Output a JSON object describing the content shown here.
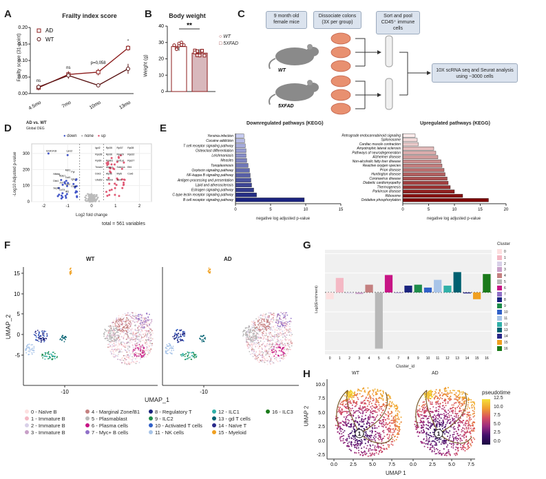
{
  "labels": {
    "A": "A",
    "B": "B",
    "C": "C",
    "D": "D",
    "E": "E",
    "F": "F",
    "G": "G",
    "H": "H"
  },
  "colors": {
    "ad": "#8b1a1a",
    "wt": "#5a1414",
    "down_bar": "#1a237e",
    "up_bar": "#7f0000",
    "down_pt": "#4457c8",
    "up_pt": "#e05a75",
    "none_pt": "#bbbbbb"
  },
  "panelA": {
    "title": "Frailty index score",
    "ylabel": "Frailty score (31-point)",
    "legend": [
      "AD",
      "WT"
    ],
    "annotations": [
      "ns",
      "ns",
      "p=0,058",
      "*"
    ],
    "chart_data": {
      "type": "line",
      "categories": [
        "4.5mo",
        "7mo",
        "10mo",
        "13mo"
      ],
      "series": [
        {
          "name": "AD",
          "values": [
            0.018,
            0.058,
            0.065,
            0.138
          ]
        },
        {
          "name": "WT",
          "values": [
            0.02,
            0.055,
            0.025,
            0.075
          ]
        }
      ],
      "errors": [
        {
          "name": "AD",
          "values": [
            0.008,
            0.01,
            0.01,
            0.008
          ]
        },
        {
          "name": "WT",
          "values": [
            0.008,
            0.01,
            0.005,
            0.015
          ]
        }
      ],
      "yticks": [
        "0.00",
        "0.05",
        "0.10",
        "0.15",
        "0.20"
      ],
      "ylim": [
        0,
        0.2
      ]
    }
  },
  "panelB": {
    "title": "Body weight",
    "ylabel": "Weight (g)",
    "sig": "**",
    "legend": [
      "WT",
      "5XFAD"
    ],
    "chart_data": {
      "type": "bar",
      "categories": [
        "WT",
        "5XFAD"
      ],
      "values": [
        27.5,
        23.5
      ],
      "yticks": [
        "0",
        "10",
        "20",
        "30",
        "40"
      ],
      "ylim": [
        0,
        40
      ]
    }
  },
  "panelC": {
    "box1": "9 month old female mice",
    "box2": "Dissociate colons (3X per group)",
    "box3": "Sort and pool CD45⁺ immune cells",
    "box4": "10X scRNA seq and Seurat analysis using ~3000 cells",
    "wt": "WT",
    "fad": "5XFAD"
  },
  "panelD": {
    "title": "AD vs. WT",
    "subtitle": "Global DEG",
    "legend": [
      "down",
      "none",
      "up"
    ],
    "ylabel": "-Log10 Adjusted p-value",
    "xlabel": "Log2 fold change",
    "total": "total = 561 variables",
    "xticks": [
      "-2",
      "-1",
      "0",
      "1",
      "2"
    ],
    "yticks": [
      "0",
      "100",
      "200",
      "300"
    ],
    "genes_left": [
      "Gm41418",
      "Lars2",
      "Mzt1",
      "Ppl",
      "Nfkbia",
      "Rplp1",
      "Cst3",
      "Igkc",
      "Dkk1",
      "Jun",
      "Lyz2",
      "Chia",
      "Sept2",
      "Cd74",
      "Ifit1"
    ],
    "genes_right": [
      "Igcl2",
      "Rpl35",
      "Rpl37",
      "Rpl28",
      "Rps28",
      "Rpl36",
      "Rps29",
      "Rps32",
      "Rpl39",
      "Malat1",
      "Eef1a1",
      "Rps27",
      "Tmsb4",
      "Ubeg1",
      "Sdcb1a",
      "Eif4",
      "Ddx3",
      "Atp5e",
      "Myl6",
      "Cox6",
      "Uba52",
      "Nfkbid",
      "Junb"
    ]
  },
  "panelE": {
    "down_title": "Downregulated pathways (KEGG)",
    "up_title": "Upregulated pathways (KEGG)",
    "xlabel": "negative log adjusted p-value",
    "down": {
      "type": "bar",
      "categories": [
        "Yersinia infection",
        "Cocaine addiction",
        "T cell receptor signaling pathway",
        "Osteoclast differentiation",
        "Leishmaniasis",
        "Measles",
        "Toxoplasmosis",
        "Oxytocin signaling pathway",
        "NF-kappa B signaling pathway",
        "Antigen processing and presentation",
        "Lipid and atherosclerosis",
        "Estrogen signaling pathway",
        "C-type lectin receptor signaling pathway",
        "B cell receptor signaling pathway"
      ],
      "values": [
        1.2,
        1.3,
        1.4,
        1.5,
        1.5,
        1.6,
        1.8,
        2.0,
        2.1,
        2.2,
        2.3,
        2.6,
        3.0,
        9.8
      ],
      "xticks": [
        "0",
        "5",
        "10",
        "15"
      ],
      "xlim": [
        0,
        15
      ]
    },
    "up": {
      "type": "bar",
      "categories": [
        "Retrograde endocannabinoid signaling",
        "Spliceosome",
        "Cardiac muscle contraction",
        "Amyotrophic lateral sclerosis",
        "Pathways of neurodegeneration",
        "Alzheimer disease",
        "Non-alcoholic fatty liver disease",
        "Reactive oxygen species",
        "Prion disease",
        "Huntington disease",
        "Coronavirus disease",
        "Diabetic cardiomyopathy",
        "Thermogenesis",
        "Parkinson disease",
        "Ribosome",
        "Oxidative phosphorylation"
      ],
      "values": [
        2.4,
        2.8,
        3.0,
        6.0,
        6.4,
        6.8,
        7.4,
        7.6,
        8.0,
        8.2,
        8.6,
        8.8,
        9.2,
        10.0,
        11.6,
        16.6
      ],
      "xticks": [
        "0",
        "5",
        "10",
        "15",
        "20"
      ],
      "xlim": [
        0,
        20
      ]
    }
  },
  "panelF": {
    "wt": "WT",
    "ad": "AD",
    "xlabel": "UMAP_1",
    "ylabel": "UMAP_2",
    "xticks": [
      "-10",
      "-10"
    ],
    "yticks": [
      "15",
      "10",
      "5",
      "0",
      "-5"
    ],
    "clusters": [
      {
        "label": "0 - Naïve B",
        "color": "#fde0e0"
      },
      {
        "label": "1 - Immature B",
        "color": "#f4b8c4"
      },
      {
        "label": "2 - Immature B",
        "color": "#d8d0e8"
      },
      {
        "label": "3 - Immature B",
        "color": "#c8a0c8"
      },
      {
        "label": "4 - Marginal Zone/B1",
        "color": "#c48080"
      },
      {
        "label": "5 - Plasmablast",
        "color": "#b8b8b8"
      },
      {
        "label": "6 - Plasma cells",
        "color": "#c71585"
      },
      {
        "label": "7 - Myc+ B cells",
        "color": "#9070c8"
      },
      {
        "label": "8 - Regulatory T",
        "color": "#1a237e"
      },
      {
        "label": "9 - ILC2",
        "color": "#1e8c4a"
      },
      {
        "label": "10 - Activated T cells",
        "color": "#3060c8"
      },
      {
        "label": "11 - NK cells",
        "color": "#a8c4e8"
      },
      {
        "label": "12 - ILC1",
        "color": "#30b0a8"
      },
      {
        "label": "13 - gd T cells",
        "color": "#006070"
      },
      {
        "label": "14 - Naïve T",
        "color": "#2a2a8a"
      },
      {
        "label": "15 - Myeloid",
        "color": "#f0a020"
      },
      {
        "label": "16 - ILC3",
        "color": "#1a7a1a"
      }
    ]
  },
  "panelG": {
    "ylabel": "Log2(Enrichment)",
    "xlabel": "Cluster_id",
    "legend_title": "Cluster",
    "chart_data": {
      "type": "bar",
      "categories": [
        "0",
        "1",
        "2",
        "3",
        "4",
        "5",
        "6",
        "7",
        "8",
        "9",
        "10",
        "11",
        "12",
        "13",
        "14",
        "15",
        "16"
      ],
      "values": [
        -0.35,
        0.75,
        -0.05,
        -0.08,
        0.4,
        -2.9,
        0.9,
        0.0,
        0.35,
        0.4,
        0.25,
        0.65,
        0.35,
        1.05,
        -0.05,
        -0.35,
        0.95
      ],
      "ylim": [
        -3.2,
        2.2
      ]
    }
  },
  "panelH": {
    "wt": "WT",
    "ad": "AD",
    "xlabel": "UMAP 1",
    "ylabel": "UMAP 2",
    "xticks": [
      "0.0",
      "2.5",
      "5.0",
      "7.5"
    ],
    "yticks": [
      "10.0",
      "7.5",
      "5.0",
      "2.5",
      "0.0",
      "-2.5"
    ],
    "node": "1",
    "legend_title": "pseudotime",
    "legend_ticks": [
      "12.5",
      "10.0",
      "7.5",
      "5.0",
      "2.5",
      "0.0"
    ]
  }
}
